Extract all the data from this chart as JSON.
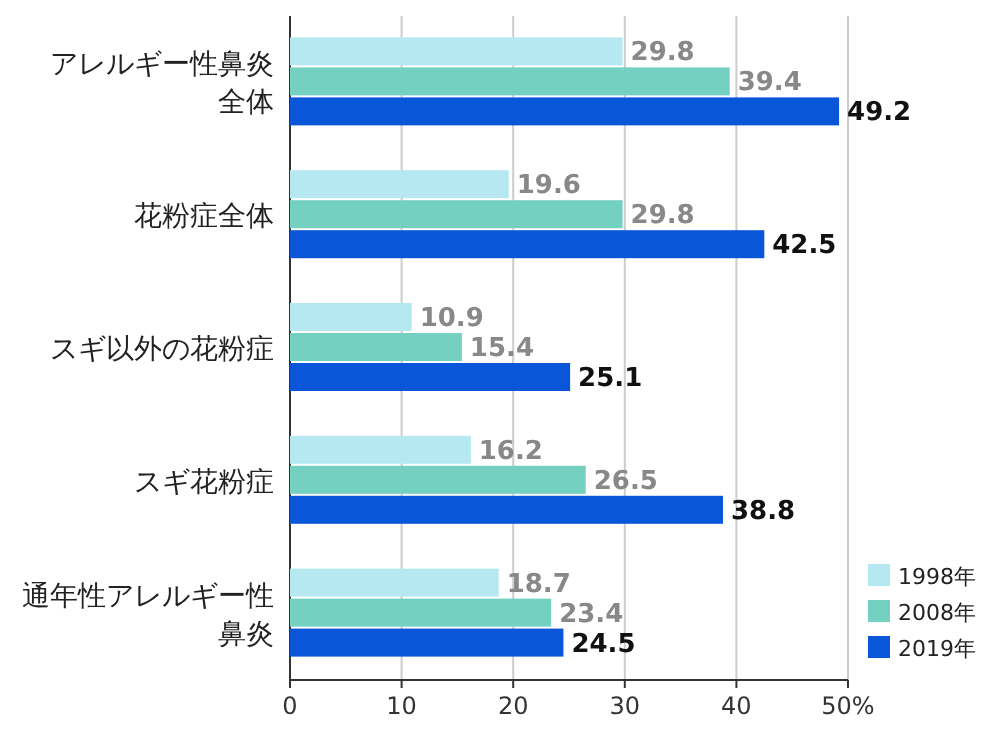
{
  "chart_data": {
    "type": "bar",
    "orientation": "horizontal",
    "categories": [
      "アレルギー性鼻炎全体",
      "花粉症全体",
      "スギ以外の花粉症",
      "スギ花粉症",
      "通年性アレルギー性鼻炎"
    ],
    "series": [
      {
        "name": "1998年",
        "color": "#b5e8f0",
        "values": [
          29.8,
          19.6,
          10.9,
          16.2,
          18.7
        ]
      },
      {
        "name": "2008年",
        "color": "#74d1c2",
        "values": [
          39.4,
          29.8,
          15.4,
          26.5,
          23.4
        ]
      },
      {
        "name": "2019年",
        "color": "#0a56d8",
        "values": [
          49.2,
          42.5,
          25.1,
          38.8,
          24.5
        ]
      }
    ],
    "xlim": [
      0,
      50
    ],
    "xticks": [
      0,
      10,
      20,
      30,
      40,
      {
        "value": 50,
        "label": "50%"
      }
    ],
    "grid": "x",
    "legend": "bottom right",
    "data_labels": true
  }
}
